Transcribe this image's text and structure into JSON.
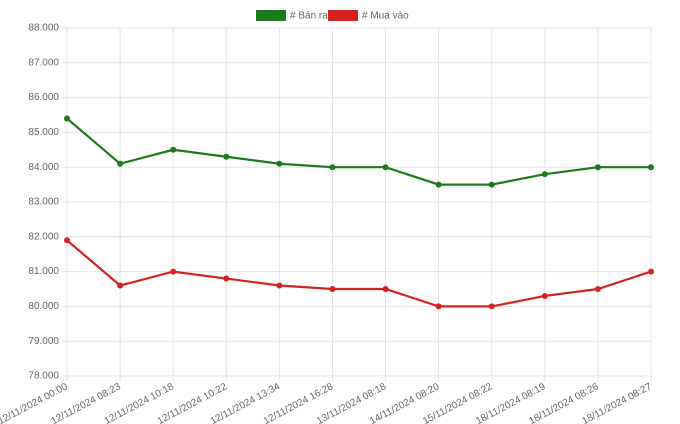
{
  "chart_data": {
    "type": "line",
    "categories": [
      "12/11/2024 00:00",
      "12/11/2024 08:23",
      "12/11/2024 10:18",
      "12/11/2024 10:22",
      "12/11/2024 13:34",
      "12/11/2024 16:28",
      "13/11/2024 08:18",
      "14/11/2024 08:20",
      "15/11/2024 08:22",
      "18/11/2024 08:19",
      "18/11/2024 08:26",
      "18/11/2024 08:27"
    ],
    "series": [
      {
        "name": "# Bán ra",
        "color": "#1b7a1b",
        "values": [
          85400,
          84100,
          84500,
          84300,
          84100,
          84000,
          84000,
          83500,
          83500,
          83800,
          84000,
          84000
        ]
      },
      {
        "name": "# Mua vào",
        "color": "#d42222",
        "values": [
          81900,
          80600,
          81000,
          80800,
          80600,
          80500,
          80500,
          80000,
          80000,
          80300,
          80500,
          81000
        ]
      }
    ],
    "ylim": [
      78000,
      88000
    ],
    "yticks": [
      {
        "value": 78000,
        "label": "78.000"
      },
      {
        "value": 79000,
        "label": "79.000"
      },
      {
        "value": 80000,
        "label": "80.000"
      },
      {
        "value": 81000,
        "label": "81.000"
      },
      {
        "value": 82000,
        "label": "82.000"
      },
      {
        "value": 83000,
        "label": "83.000"
      },
      {
        "value": 84000,
        "label": "84.000"
      },
      {
        "value": 85000,
        "label": "85.000"
      },
      {
        "value": 86000,
        "label": "86.000"
      },
      {
        "value": 87000,
        "label": "87.000"
      },
      {
        "value": 88000,
        "label": "88.000"
      }
    ],
    "grid": true,
    "legend": "top"
  }
}
